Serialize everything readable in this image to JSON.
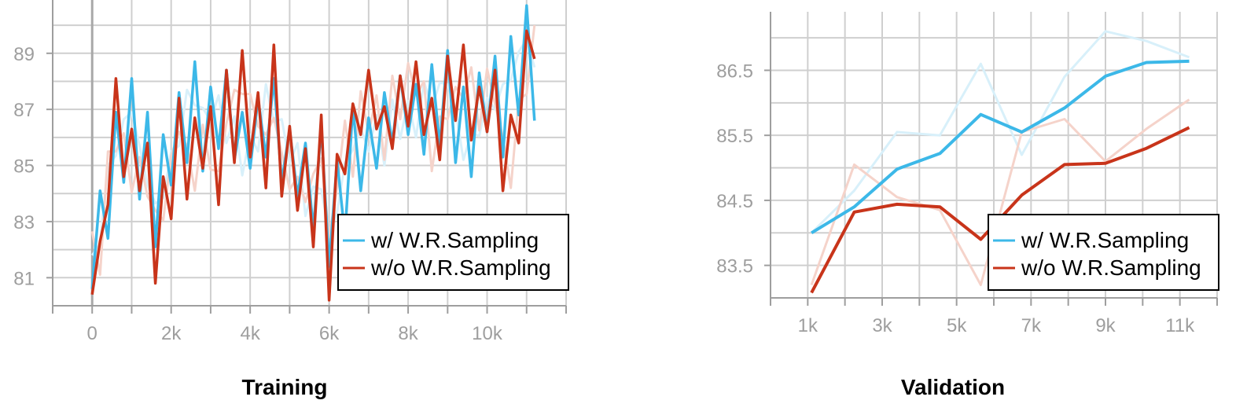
{
  "colors": {
    "w_sampling": "#3cb8e8",
    "wo_sampling": "#c8341a",
    "w_sampling_raw": "#d8f0fa",
    "wo_sampling_raw": "#f5d3ca"
  },
  "chart_data": [
    {
      "type": "line",
      "caption": "Training",
      "title": "",
      "xlabel": "",
      "ylabel": "",
      "xlim": [
        -1000,
        12000
      ],
      "ylim": [
        80,
        90.9
      ],
      "x_ticks": [
        0,
        2000,
        4000,
        6000,
        8000,
        10000
      ],
      "x_tick_labels": [
        "0",
        "2k",
        "4k",
        "6k",
        "8k",
        "10k"
      ],
      "y_ticks": [
        81,
        83,
        85,
        87,
        89
      ],
      "y_tick_labels": [
        "81",
        "83",
        "85",
        "87",
        "89"
      ],
      "grid": true,
      "legend_position": "bottom-right",
      "series": [
        {
          "name": "w/ W.R.Sampling",
          "color_key": "w_sampling",
          "x": [
            0,
            200,
            400,
            600,
            800,
            1000,
            1200,
            1400,
            1600,
            1800,
            2000,
            2200,
            2400,
            2600,
            2800,
            3000,
            3200,
            3400,
            3600,
            3800,
            4000,
            4200,
            4400,
            4600,
            4800,
            5000,
            5200,
            5400,
            5600,
            5800,
            6000,
            6200,
            6400,
            6600,
            6800,
            7000,
            7200,
            7400,
            7600,
            7800,
            8000,
            8200,
            8400,
            8600,
            8800,
            9000,
            9200,
            9400,
            9600,
            9800,
            10000,
            10200,
            10400,
            10600,
            10800,
            11000,
            11200
          ],
          "values": [
            80.6,
            84.1,
            82.4,
            86.9,
            84.4,
            88.1,
            83.8,
            86.9,
            82.1,
            86.1,
            84.3,
            87.6,
            85.1,
            88.7,
            84.8,
            87.8,
            85.6,
            88.4,
            85.2,
            86.9,
            84.9,
            87.4,
            85.3,
            88.1,
            84.4,
            86.3,
            83.9,
            85.8,
            82.7,
            86.4,
            81.4,
            85.2,
            82.5,
            87.1,
            84.1,
            86.7,
            84.9,
            87.6,
            85.8,
            88.2,
            86.1,
            87.9,
            85.4,
            88.6,
            85.7,
            89.1,
            85.1,
            87.8,
            84.6,
            88.3,
            86.2,
            88.9,
            85.3,
            89.6,
            86.8,
            90.7,
            86.6
          ],
          "smoothed": true
        },
        {
          "name": "w/o W.R.Sampling",
          "color_key": "wo_sampling",
          "x": [
            0,
            200,
            400,
            600,
            800,
            1000,
            1200,
            1400,
            1600,
            1800,
            2000,
            2200,
            2400,
            2600,
            2800,
            3000,
            3200,
            3400,
            3600,
            3800,
            4000,
            4200,
            4400,
            4600,
            4800,
            5000,
            5200,
            5400,
            5600,
            5800,
            6000,
            6200,
            6400,
            6600,
            6800,
            7000,
            7200,
            7400,
            7600,
            7800,
            8000,
            8200,
            8400,
            8600,
            8800,
            9000,
            9200,
            9400,
            9600,
            9800,
            10000,
            10200,
            10400,
            10600,
            10800,
            11000,
            11200
          ],
          "values": [
            80.4,
            82.3,
            83.6,
            88.1,
            84.6,
            86.3,
            84.1,
            85.8,
            80.8,
            84.6,
            83.1,
            87.4,
            83.8,
            86.7,
            84.9,
            87.1,
            83.6,
            88.4,
            85.1,
            89.1,
            85.3,
            87.6,
            84.2,
            89.3,
            83.9,
            86.4,
            83.4,
            85.6,
            82.1,
            86.8,
            80.2,
            85.4,
            84.7,
            87.2,
            86.1,
            88.4,
            86.3,
            87.1,
            85.6,
            88.2,
            86.4,
            88.7,
            86.1,
            87.4,
            85.2,
            88.9,
            86.6,
            89.3,
            85.9,
            87.8,
            86.2,
            88.4,
            84.1,
            86.8,
            85.8,
            89.8,
            88.8
          ],
          "smoothed": true
        }
      ]
    },
    {
      "type": "line",
      "caption": "Validation",
      "title": "",
      "xlabel": "",
      "ylabel": "",
      "xlim": [
        0,
        12000
      ],
      "ylim": [
        83.0,
        87.4
      ],
      "x_ticks": [
        1000,
        3000,
        5000,
        7000,
        9000,
        11000
      ],
      "x_tick_labels": [
        "1k",
        "3k",
        "5k",
        "7k",
        "9k",
        "11k"
      ],
      "y_ticks": [
        83.5,
        84.5,
        85.5,
        86.5
      ],
      "y_tick_labels": [
        "83.5",
        "84.5",
        "85.5",
        "86.5"
      ],
      "grid": true,
      "legend_position": "bottom-right",
      "series": [
        {
          "name": "w/ W.R.Sampling",
          "color_key": "w_sampling",
          "x": [
            1100,
            2250,
            3400,
            4550,
            5650,
            6750,
            7900,
            9000,
            10100,
            11250
          ],
          "values": [
            84.0,
            84.4,
            84.98,
            85.22,
            85.82,
            85.55,
            85.92,
            86.41,
            86.62,
            86.64
          ],
          "raw_values": [
            84.0,
            84.65,
            85.55,
            85.5,
            86.6,
            85.2,
            86.4,
            87.1,
            86.95,
            86.7
          ]
        },
        {
          "name": "w/o W.R.Sampling",
          "color_key": "wo_sampling",
          "x": [
            1100,
            2250,
            3400,
            4550,
            5650,
            6750,
            7900,
            9000,
            10100,
            11250
          ],
          "values": [
            83.08,
            84.32,
            84.44,
            84.4,
            83.9,
            84.58,
            85.05,
            85.07,
            85.3,
            85.62
          ],
          "raw_values": [
            83.2,
            85.05,
            84.55,
            84.35,
            83.2,
            85.55,
            85.75,
            85.1,
            85.6,
            86.05
          ]
        }
      ]
    }
  ]
}
